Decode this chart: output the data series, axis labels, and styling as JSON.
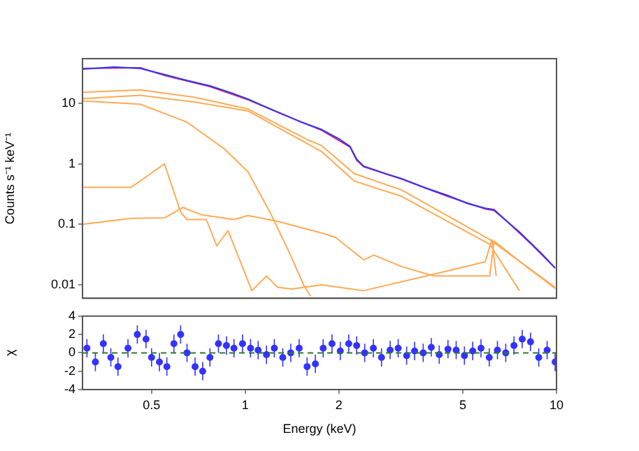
{
  "chart_data": [
    {
      "type": "line",
      "ylabel": "Counts s⁻¹ keV⁻¹",
      "log": "xy",
      "xlim": [
        0.3,
        10
      ],
      "xticks": [
        0.5,
        1,
        2,
        5,
        10
      ],
      "ylim": [
        0.006,
        55
      ],
      "yticks": [
        0.01,
        0.1,
        1,
        10
      ],
      "tick_labels": "y",
      "legend": false,
      "grid": false,
      "series": [
        {
          "color": "#3333ff",
          "x": [
            0.3,
            0.38,
            0.46,
            0.55,
            0.65,
            0.77,
            0.9,
            1.02,
            1.15,
            1.29,
            1.5,
            1.76,
            2.0,
            2.17,
            2.28,
            2.4,
            2.8,
            3.18,
            3.8,
            4.47,
            5.2,
            5.9,
            6.3,
            6.96,
            7.6,
            8.3,
            9.0,
            9.9
          ],
          "values": [
            37,
            40,
            38,
            30,
            24,
            19.5,
            15,
            11.8,
            9,
            7,
            5,
            3.7,
            2.6,
            1.95,
            1.2,
            0.92,
            0.7,
            0.57,
            0.4,
            0.3,
            0.22,
            0.185,
            0.175,
            0.11,
            0.075,
            0.048,
            0.032,
            0.019
          ]
        },
        {
          "color": "#d02a70",
          "x": [
            0.3,
            0.46,
            0.55,
            0.77,
            1.02,
            1.29,
            1.76,
            2.17,
            2.28,
            2.4,
            3.18,
            4.47,
            5.9,
            6.3,
            6.96,
            8.3,
            9.9
          ],
          "values": [
            38,
            39,
            29,
            19,
            11.5,
            6.9,
            3.6,
            1.9,
            1.15,
            0.9,
            0.56,
            0.29,
            0.18,
            0.17,
            0.11,
            0.047,
            0.019
          ]
        },
        {
          "color": "#ffaa55",
          "x": [
            0.3,
            0.46,
            0.69,
            1.02,
            1.59,
            1.76,
            2.24,
            3.18,
            6.1,
            9.9
          ],
          "values": [
            15.3,
            16.7,
            12.6,
            8.1,
            2.5,
            2.0,
            0.69,
            0.37,
            0.056,
            0.0091
          ]
        },
        {
          "color": "#ffaa55",
          "x": [
            0.3,
            0.46,
            0.69,
            1.02,
            1.76,
            2.24,
            3.18,
            6.1,
            7.6
          ],
          "values": [
            12,
            13.6,
            10.5,
            7.5,
            1.6,
            0.52,
            0.29,
            0.047,
            0.008
          ]
        },
        {
          "color": "#ffaa55",
          "x": [
            0.3,
            0.46,
            0.65,
            0.86,
            1.02,
            1.2,
            1.39,
            1.54,
            1.62
          ],
          "values": [
            11,
            9.7,
            4.9,
            1.74,
            0.74,
            0.16,
            0.033,
            0.01,
            0.0065
          ]
        },
        {
          "color": "#ffaa55",
          "x": [
            0.3,
            0.43,
            0.55,
            0.62,
            0.65,
            0.75,
            0.81,
            0.88,
            1.05,
            1.17,
            1.27,
            1.41,
            1.76,
            2.4,
            4.03,
            5.9,
            6.2,
            6.4
          ],
          "values": [
            0.41,
            0.41,
            1.0,
            0.16,
            0.12,
            0.12,
            0.044,
            0.079,
            0.008,
            0.014,
            0.0091,
            0.0085,
            0.01,
            0.008,
            0.015,
            0.024,
            0.056,
            0.014
          ]
        },
        {
          "color": "#ffaa55",
          "x": [
            0.3,
            0.43,
            0.55,
            0.63,
            0.72,
            0.92,
            1.02,
            1.29,
            1.76,
            1.95,
            2.4,
            2.59,
            3.18,
            4.03,
            6.1,
            6.3,
            6.75,
            8.0,
            9.9
          ],
          "values": [
            0.1,
            0.126,
            0.128,
            0.19,
            0.145,
            0.12,
            0.14,
            0.11,
            0.072,
            0.061,
            0.026,
            0.031,
            0.02,
            0.014,
            0.014,
            0.053,
            0.04,
            0.02,
            0.0087
          ]
        }
      ]
    },
    {
      "type": "scatter",
      "xlabel": "Energy (keV)",
      "ylabel": "χ",
      "log": "x",
      "xlim": [
        0.3,
        10
      ],
      "xticks": [
        0.5,
        1,
        2,
        5,
        10
      ],
      "ylim": [
        -4,
        4
      ],
      "yticks": [
        -4,
        -2,
        0,
        2,
        4
      ],
      "legend": false,
      "grid": false,
      "marker": "circle",
      "ref_lines": [
        {
          "axis": "y",
          "value": 0,
          "color": "#2a7a2a",
          "line_style": "dashed"
        }
      ],
      "x": [
        0.31,
        0.33,
        0.35,
        0.37,
        0.39,
        0.42,
        0.45,
        0.48,
        0.5,
        0.53,
        0.56,
        0.59,
        0.62,
        0.65,
        0.69,
        0.73,
        0.77,
        0.82,
        0.87,
        0.92,
        0.98,
        1.04,
        1.1,
        1.17,
        1.24,
        1.32,
        1.4,
        1.49,
        1.58,
        1.68,
        1.78,
        1.9,
        2.02,
        2.15,
        2.28,
        2.42,
        2.58,
        2.74,
        2.92,
        3.1,
        3.3,
        3.5,
        3.73,
        3.96,
        4.2,
        4.48,
        4.76,
        5.06,
        5.38,
        5.72,
        6.08,
        6.46,
        6.87,
        7.3,
        7.76,
        8.25,
        8.77,
        9.33,
        9.9
      ],
      "series": [
        {
          "color": "#3333ff",
          "values": [
            0.5,
            -1,
            1,
            -0.5,
            -1.5,
            0.5,
            2,
            1.5,
            -0.5,
            -1,
            -1.5,
            1,
            2,
            0,
            -1.5,
            -2,
            -0.5,
            1,
            0.8,
            0.5,
            1,
            0.5,
            0.3,
            -0.2,
            0.5,
            -0.5,
            0,
            0.5,
            -1.5,
            -1.2,
            0.5,
            1,
            0.2,
            1,
            0.8,
            0,
            0.5,
            -0.5,
            0.3,
            0.5,
            -0.3,
            0.2,
            0,
            0.6,
            -0.2,
            0.4,
            0.3,
            -0.3,
            0.2,
            0.5,
            -0.5,
            0.3,
            0,
            0.8,
            1.5,
            1.2,
            -0.5,
            0.3,
            -1
          ],
          "errors": [
            1,
            1,
            1,
            1,
            1,
            1,
            1,
            1,
            1,
            1,
            1,
            1,
            1,
            1,
            1,
            1,
            1,
            1,
            1,
            1,
            1,
            1,
            1,
            1,
            1,
            1,
            1,
            1,
            1,
            1,
            1,
            1,
            1,
            1,
            1,
            1,
            1,
            1,
            1,
            1,
            1,
            1,
            1,
            1,
            1,
            1,
            1,
            1,
            1,
            1,
            1,
            1,
            1,
            1,
            1,
            1,
            1,
            1,
            1
          ]
        }
      ]
    }
  ]
}
